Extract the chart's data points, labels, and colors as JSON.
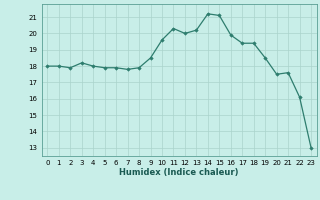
{
  "x": [
    0,
    1,
    2,
    3,
    4,
    5,
    6,
    7,
    8,
    9,
    10,
    11,
    12,
    13,
    14,
    15,
    16,
    17,
    18,
    19,
    20,
    21,
    22,
    23
  ],
  "y": [
    18.0,
    18.0,
    17.9,
    18.2,
    18.0,
    17.9,
    17.9,
    17.8,
    17.9,
    18.5,
    19.6,
    20.3,
    20.0,
    20.2,
    21.2,
    21.1,
    19.9,
    19.4,
    19.4,
    18.5,
    17.5,
    17.6,
    16.1,
    13.0
  ],
  "line_color": "#2e7d6e",
  "marker": "D",
  "marker_size": 1.8,
  "background_color": "#c8eee8",
  "grid_color": "#aad4cc",
  "xlabel": "Humidex (Indice chaleur)",
  "ylim": [
    12.5,
    21.8
  ],
  "xlim": [
    -0.5,
    23.5
  ],
  "yticks": [
    13,
    14,
    15,
    16,
    17,
    18,
    19,
    20,
    21
  ],
  "axis_fontsize": 5.5,
  "tick_fontsize": 5.0,
  "xlabel_fontsize": 6.0
}
